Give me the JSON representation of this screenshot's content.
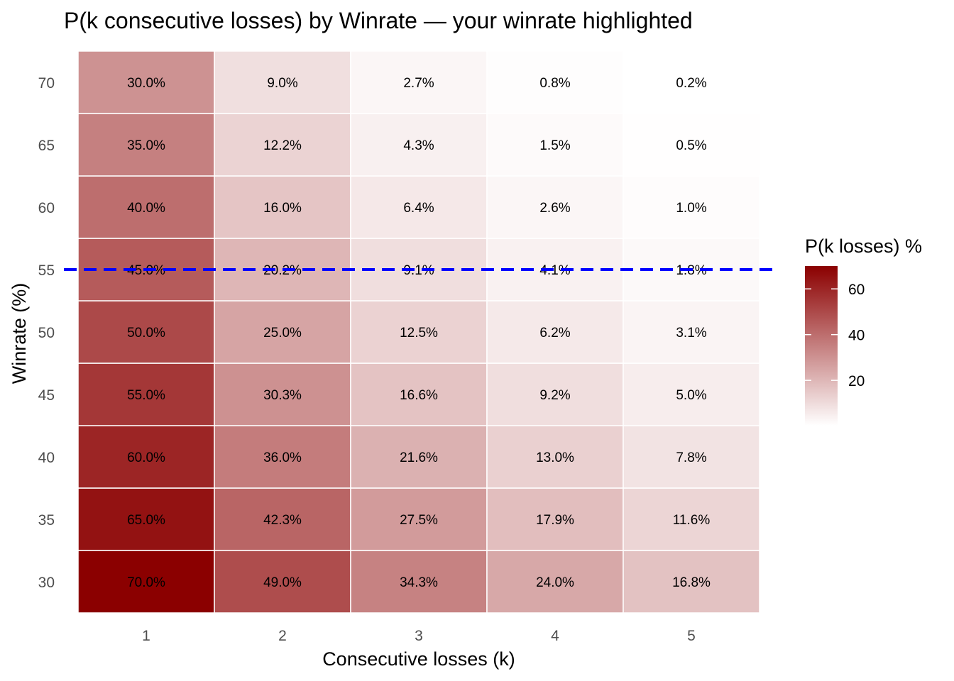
{
  "chart_data": {
    "type": "heatmap",
    "title": "P(k consecutive losses) by Winrate — your winrate highlighted",
    "xlabel": "Consecutive losses (k)",
    "ylabel": "Winrate (%)",
    "x": [
      "1",
      "2",
      "3",
      "4",
      "5"
    ],
    "y": [
      "30",
      "35",
      "40",
      "45",
      "50",
      "55",
      "60",
      "65",
      "70"
    ],
    "values": [
      [
        70.0,
        49.0,
        34.3,
        24.0,
        16.8
      ],
      [
        65.0,
        42.3,
        27.5,
        17.9,
        11.6
      ],
      [
        60.0,
        36.0,
        21.6,
        13.0,
        7.8
      ],
      [
        55.0,
        30.3,
        16.6,
        9.2,
        5.0
      ],
      [
        50.0,
        25.0,
        12.5,
        6.2,
        3.1
      ],
      [
        45.0,
        20.2,
        9.1,
        4.1,
        1.8
      ],
      [
        40.0,
        16.0,
        6.4,
        2.6,
        1.0
      ],
      [
        35.0,
        12.2,
        4.3,
        1.5,
        0.5
      ],
      [
        30.0,
        9.0,
        2.7,
        0.8,
        0.2
      ]
    ],
    "highlight": {
      "winrate": 55,
      "style": "dashed",
      "color": "#0000ff"
    },
    "legend": {
      "title": "P(k losses) %",
      "ticks": [
        20,
        40,
        60
      ],
      "range": [
        0.2,
        70.0
      ],
      "low_color": "#ffffff",
      "high_color": "#8b0000",
      "placement": "right"
    },
    "grid": false
  }
}
